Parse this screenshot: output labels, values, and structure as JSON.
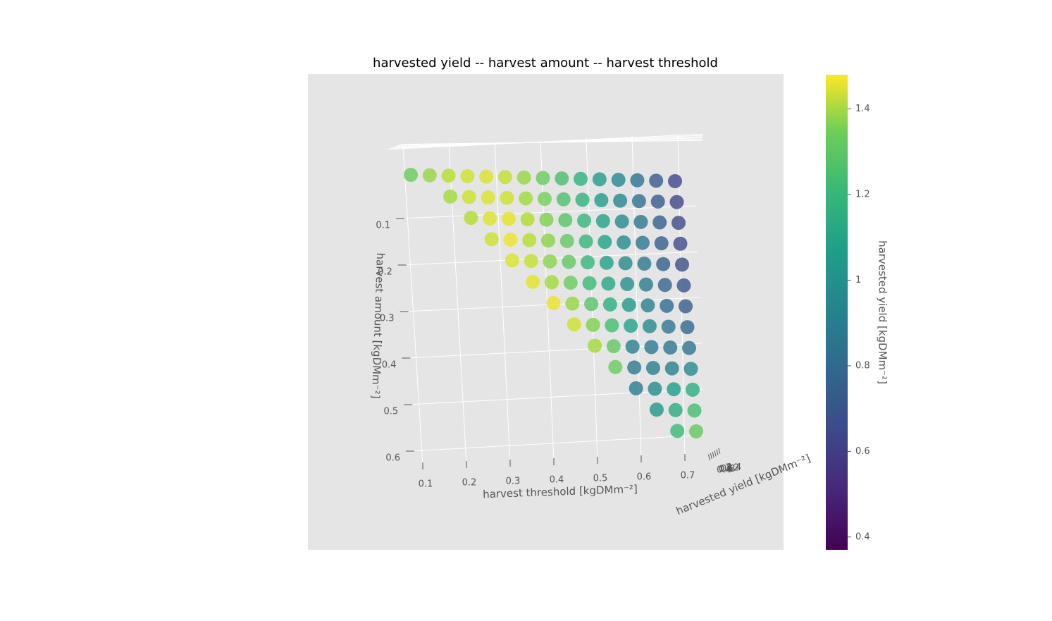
{
  "chart_data": {
    "type": "scatter3d",
    "title": "harvested yield -- harvest amount -- harvest threshold",
    "xlabel": "harvest threshold [kgDMm⁻²]",
    "ylabel": "harvest amount [kgDMm⁻²]",
    "zlabel": "harvested yield [kgDMm⁻²]",
    "colorbar_label": "harvested yield [kgDMm⁻²]",
    "colormap": "viridis",
    "xticks": [
      0.1,
      0.2,
      0.3,
      0.4,
      0.5,
      0.6,
      0.7
    ],
    "yticks": [
      0.1,
      0.2,
      0.3,
      0.4,
      0.5,
      0.6
    ],
    "zticks": [
      0.4,
      0.6,
      0.8,
      1.0,
      1.2,
      1.4
    ],
    "zlim": [
      0.37,
      1.48
    ],
    "grid": true,
    "series": [
      {
        "x": [
          0.05,
          0.1,
          0.15,
          0.2,
          0.25,
          0.3,
          0.35,
          0.4,
          0.45,
          0.5,
          0.55,
          0.6,
          0.65,
          0.7,
          0.75,
          0.15,
          0.2,
          0.25,
          0.3,
          0.35,
          0.4,
          0.45,
          0.5,
          0.55,
          0.6,
          0.65,
          0.7,
          0.75,
          0.2,
          0.25,
          0.3,
          0.35,
          0.4,
          0.45,
          0.5,
          0.55,
          0.6,
          0.65,
          0.7,
          0.75,
          0.25,
          0.3,
          0.35,
          0.4,
          0.45,
          0.5,
          0.55,
          0.6,
          0.65,
          0.7,
          0.75,
          0.3,
          0.35,
          0.4,
          0.45,
          0.5,
          0.55,
          0.6,
          0.65,
          0.7,
          0.75,
          0.35,
          0.4,
          0.45,
          0.5,
          0.55,
          0.6,
          0.65,
          0.7,
          0.75,
          0.4,
          0.45,
          0.5,
          0.55,
          0.6,
          0.65,
          0.7,
          0.75,
          0.45,
          0.5,
          0.55,
          0.6,
          0.65,
          0.7,
          0.75,
          0.5,
          0.55,
          0.6,
          0.65,
          0.7,
          0.75,
          0.55,
          0.6,
          0.65,
          0.7,
          0.75,
          0.6,
          0.65,
          0.7,
          0.75,
          0.65,
          0.7,
          0.75,
          0.7,
          0.75
        ],
        "y": [
          0,
          0,
          0,
          0,
          0,
          0,
          0,
          0,
          0,
          0,
          0,
          0,
          0,
          0,
          0,
          0.05,
          0.05,
          0.05,
          0.05,
          0.05,
          0.05,
          0.05,
          0.05,
          0.05,
          0.05,
          0.05,
          0.05,
          0.05,
          0.1,
          0.1,
          0.1,
          0.1,
          0.1,
          0.1,
          0.1,
          0.1,
          0.1,
          0.1,
          0.1,
          0.1,
          0.15,
          0.15,
          0.15,
          0.15,
          0.15,
          0.15,
          0.15,
          0.15,
          0.15,
          0.15,
          0.15,
          0.2,
          0.2,
          0.2,
          0.2,
          0.2,
          0.2,
          0.2,
          0.2,
          0.2,
          0.2,
          0.25,
          0.25,
          0.25,
          0.25,
          0.25,
          0.25,
          0.25,
          0.25,
          0.25,
          0.3,
          0.3,
          0.3,
          0.3,
          0.3,
          0.3,
          0.3,
          0.3,
          0.35,
          0.35,
          0.35,
          0.35,
          0.35,
          0.35,
          0.35,
          0.4,
          0.4,
          0.4,
          0.4,
          0.4,
          0.4,
          0.45,
          0.45,
          0.45,
          0.45,
          0.45,
          0.5,
          0.5,
          0.5,
          0.5,
          0.55,
          0.55,
          0.55,
          0.6,
          0.6
        ],
        "z": [
          1.22,
          1.3,
          1.36,
          1.4,
          1.42,
          1.38,
          1.3,
          1.22,
          1.15,
          1.08,
          0.98,
          0.88,
          0.78,
          0.68,
          0.6,
          1.32,
          1.4,
          1.42,
          1.4,
          1.32,
          1.24,
          1.16,
          1.08,
          0.98,
          0.88,
          0.78,
          0.68,
          0.6,
          1.35,
          1.42,
          1.44,
          1.35,
          1.26,
          1.18,
          1.1,
          1.0,
          0.9,
          0.8,
          0.7,
          0.62,
          1.4,
          1.45,
          1.36,
          1.28,
          1.2,
          1.1,
          1.0,
          0.9,
          0.8,
          0.7,
          0.62,
          1.42,
          1.38,
          1.28,
          1.2,
          1.1,
          1.0,
          0.9,
          0.8,
          0.7,
          0.64,
          1.44,
          1.32,
          1.22,
          1.12,
          1.02,
          0.92,
          0.82,
          0.72,
          0.66,
          1.45,
          1.3,
          1.18,
          1.06,
          0.96,
          0.86,
          0.76,
          0.7,
          1.4,
          1.26,
          1.14,
          1.0,
          0.9,
          0.8,
          0.74,
          1.32,
          1.2,
          0.85,
          0.82,
          0.8,
          0.8,
          1.22,
          0.82,
          0.84,
          0.86,
          0.9,
          0.82,
          0.9,
          0.98,
          1.06,
          0.95,
          1.05,
          1.14,
          1.12,
          1.2
        ]
      }
    ]
  }
}
